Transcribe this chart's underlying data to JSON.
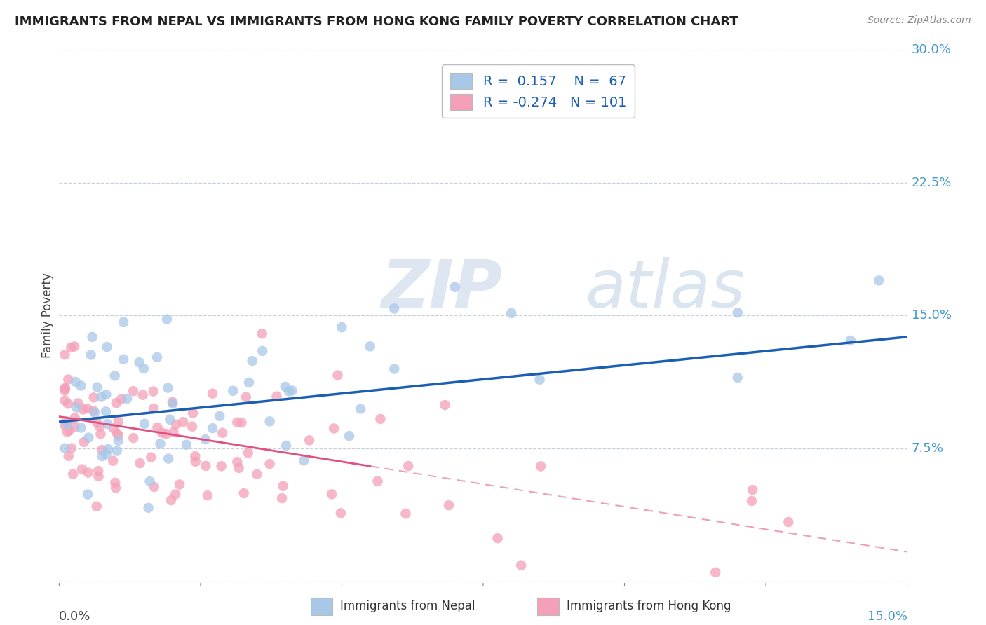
{
  "title": "IMMIGRANTS FROM NEPAL VS IMMIGRANTS FROM HONG KONG FAMILY POVERTY CORRELATION CHART",
  "source": "Source: ZipAtlas.com",
  "ylabel": "Family Poverty",
  "yticks": [
    0.0,
    0.075,
    0.15,
    0.225,
    0.3
  ],
  "ytick_labels": [
    "",
    "7.5%",
    "15.0%",
    "22.5%",
    "30.0%"
  ],
  "xlim": [
    0.0,
    0.15
  ],
  "ylim": [
    0.0,
    0.3
  ],
  "nepal_R": 0.157,
  "nepal_N": 67,
  "hk_R": -0.274,
  "hk_N": 101,
  "nepal_color": "#a8c8e8",
  "nepal_line_color": "#1a5fb4",
  "hk_color": "#f4a0b8",
  "hk_line_color": "#e05080",
  "background_color": "#ffffff",
  "grid_color": "#c8d0dc",
  "nepal_line_y0": 0.09,
  "nepal_line_y1": 0.138,
  "hk_line_x0": 0.0,
  "hk_line_y0": 0.093,
  "hk_line_x1": 0.055,
  "hk_line_y1": 0.065,
  "hk_line_x_dashed_end": 0.15,
  "hk_line_y_dashed_end": 0.0
}
